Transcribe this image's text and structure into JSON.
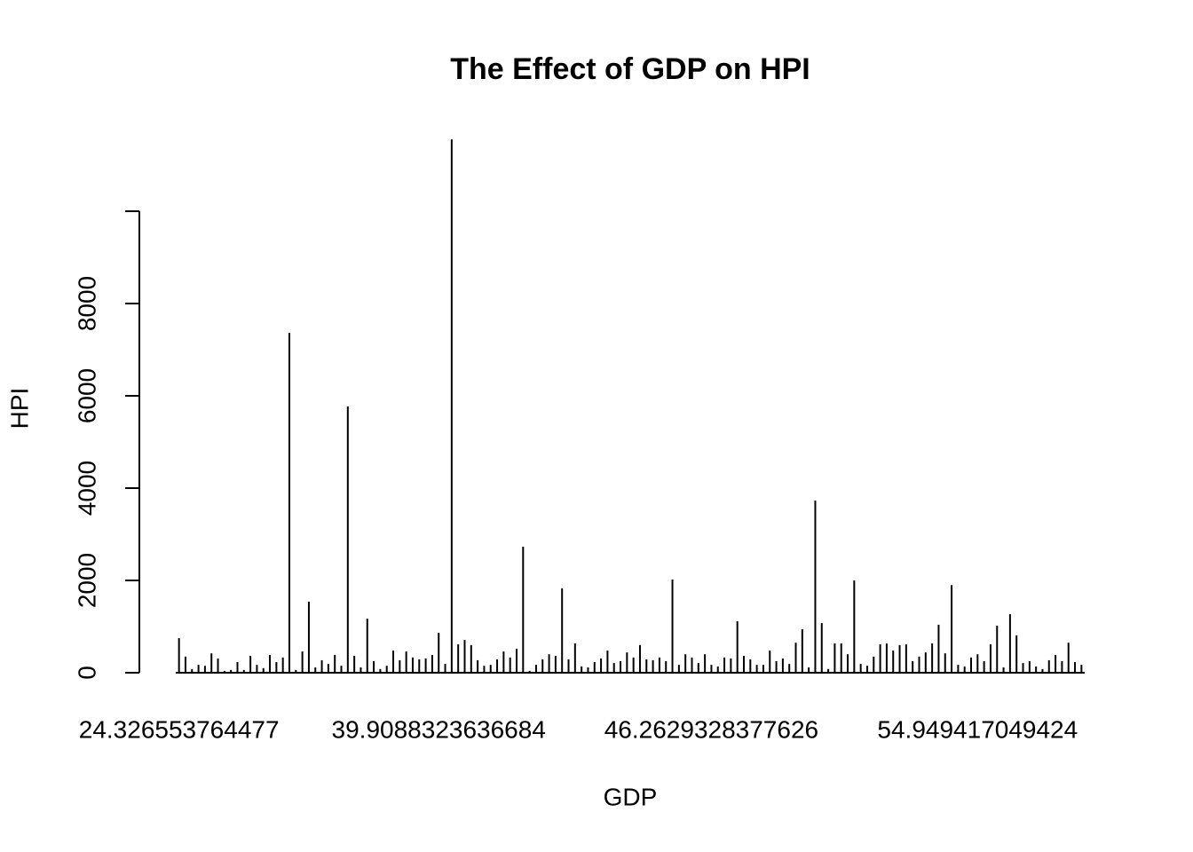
{
  "chart_data": {
    "type": "bar",
    "title": "The Effect of GDP on HPI",
    "x_label": "GDP",
    "y_label": "HPI",
    "categories": [
      "24.326553764477",
      null,
      null,
      null,
      null,
      null,
      null,
      null,
      null,
      null,
      null,
      null,
      null,
      null,
      null,
      null,
      null,
      null,
      null,
      null,
      null,
      null,
      null,
      null,
      null,
      null,
      null,
      null,
      null,
      null,
      null,
      null,
      null,
      null,
      null,
      null,
      null,
      null,
      null,
      null,
      "39.9088323636684",
      null,
      null,
      null,
      null,
      null,
      null,
      null,
      null,
      null,
      null,
      null,
      null,
      null,
      null,
      null,
      null,
      null,
      null,
      null,
      null,
      null,
      null,
      null,
      null,
      null,
      null,
      null,
      null,
      null,
      null,
      null,
      null,
      null,
      null,
      null,
      null,
      null,
      null,
      null,
      null,
      null,
      "46.2629328377626",
      null,
      null,
      null,
      null,
      null,
      null,
      null,
      null,
      null,
      null,
      null,
      null,
      null,
      null,
      null,
      null,
      null,
      null,
      null,
      null,
      null,
      null,
      null,
      null,
      null,
      null,
      null,
      null,
      null,
      null,
      null,
      null,
      null,
      null,
      null,
      null,
      null,
      null,
      null,
      null,
      "54.949417049424",
      null,
      null,
      null,
      null,
      null,
      null,
      null,
      null,
      null,
      null,
      null,
      null,
      null,
      null,
      null,
      null
    ],
    "values": [
      750,
      350,
      80,
      170,
      150,
      420,
      310,
      40,
      60,
      230,
      60,
      365,
      170,
      100,
      385,
      230,
      330,
      7365,
      60,
      460,
      1540,
      115,
      270,
      190,
      385,
      150,
      5770,
      365,
      115,
      1170,
      250,
      80,
      150,
      480,
      270,
      460,
      330,
      290,
      310,
      385,
      865,
      190,
      11558,
      615,
      710,
      600,
      270,
      150,
      170,
      290,
      460,
      330,
      520,
      2730,
      40,
      170,
      290,
      400,
      365,
      1830,
      290,
      635,
      135,
      115,
      230,
      310,
      480,
      210,
      250,
      440,
      330,
      600,
      290,
      270,
      330,
      250,
      2020,
      170,
      400,
      330,
      210,
      400,
      170,
      135,
      330,
      310,
      1115,
      365,
      290,
      170,
      170,
      480,
      250,
      310,
      190,
      650,
      940,
      115,
      3730,
      1075,
      80,
      635,
      635,
      400,
      2000,
      190,
      150,
      350,
      615,
      635,
      480,
      600,
      615,
      250,
      350,
      440,
      635,
      1040,
      420,
      1900,
      170,
      135,
      330,
      400,
      250,
      615,
      1020,
      115,
      1270,
      810,
      210,
      250,
      135,
      80,
      270,
      385,
      250,
      650,
      230,
      170
    ],
    "color": "#000000",
    "ylim": [
      0,
      11558
    ],
    "yticks": [
      0,
      2000,
      4000,
      6000,
      8000,
      {
        "value": 10000,
        "label": null
      }
    ]
  }
}
